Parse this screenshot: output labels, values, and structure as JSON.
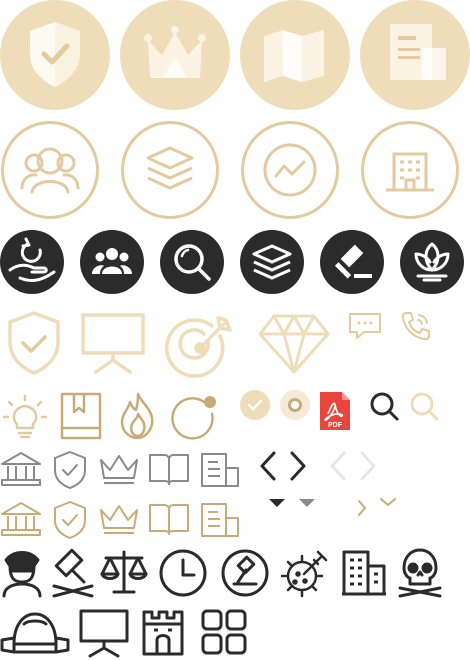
{
  "colors": {
    "gold_fill": "#efdcb9",
    "gold_light": "#fbf3e3",
    "gold_line": "#e3ca9f",
    "gold_deep": "#c9ab78",
    "gold_pale": "#f4ead5",
    "dark": "#2b2b2b",
    "gray": "#8a8a8a",
    "pdf_red": "#e8453c"
  },
  "pdf_badge": {
    "label": "PDF"
  },
  "icon_rows": [
    {
      "row": "gold-filled-circle-icons",
      "icons": [
        "shield-check-icon",
        "crown-icon",
        "map-icon",
        "document-icon"
      ]
    },
    {
      "row": "gold-outline-circle-icons",
      "icons": [
        "users-group-icon",
        "layers-icon",
        "trend-chart-icon",
        "building-icon"
      ]
    },
    {
      "row": "dark-circle-icons",
      "icons": [
        "hand-refresh-icon",
        "team-icon",
        "search-icon",
        "layers-icon",
        "gavel-icon",
        "lotus-icon"
      ]
    },
    {
      "row": "gold-line-icons",
      "icons": [
        "shield-check-icon",
        "presentation-board-icon",
        "target-arrow-icon",
        "diamond-icon",
        "chat-bubble-icon",
        "phone-icon"
      ]
    },
    {
      "row": "mixed-small-icons",
      "icons": [
        "lightbulb-icon",
        "bookmark-book-icon",
        "flame-icon",
        "refresh-dot-icon",
        "check-circle-icon",
        "radio-dot-icon",
        "pdf-file-icon",
        "search-icon",
        "search-icon",
        "chevron-left-icon",
        "chevron-right-icon"
      ]
    },
    {
      "row": "gray-line-icons",
      "icons": [
        "bank-icon",
        "shield-check-icon",
        "crown-icon",
        "open-book-icon",
        "document-icon"
      ]
    },
    {
      "row": "gold-line-icons-small",
      "icons": [
        "bank-icon",
        "shield-check-icon",
        "crown-icon",
        "open-book-icon",
        "document-icon",
        "chevron-right-icon",
        "chevron-down-icon"
      ]
    },
    {
      "row": "dark-line-icons",
      "icons": [
        "police-officer-icon",
        "gavel-crossed-icon",
        "scales-icon",
        "clock-icon",
        "stamp-icon",
        "virus-syringe-icon",
        "buildings-icon",
        "skull-icon"
      ]
    },
    {
      "row": "dark-line-icons-bottom",
      "icons": [
        "helmet-icon",
        "presentation-icon",
        "castle-tower-icon",
        "grid-apps-icon"
      ]
    }
  ]
}
